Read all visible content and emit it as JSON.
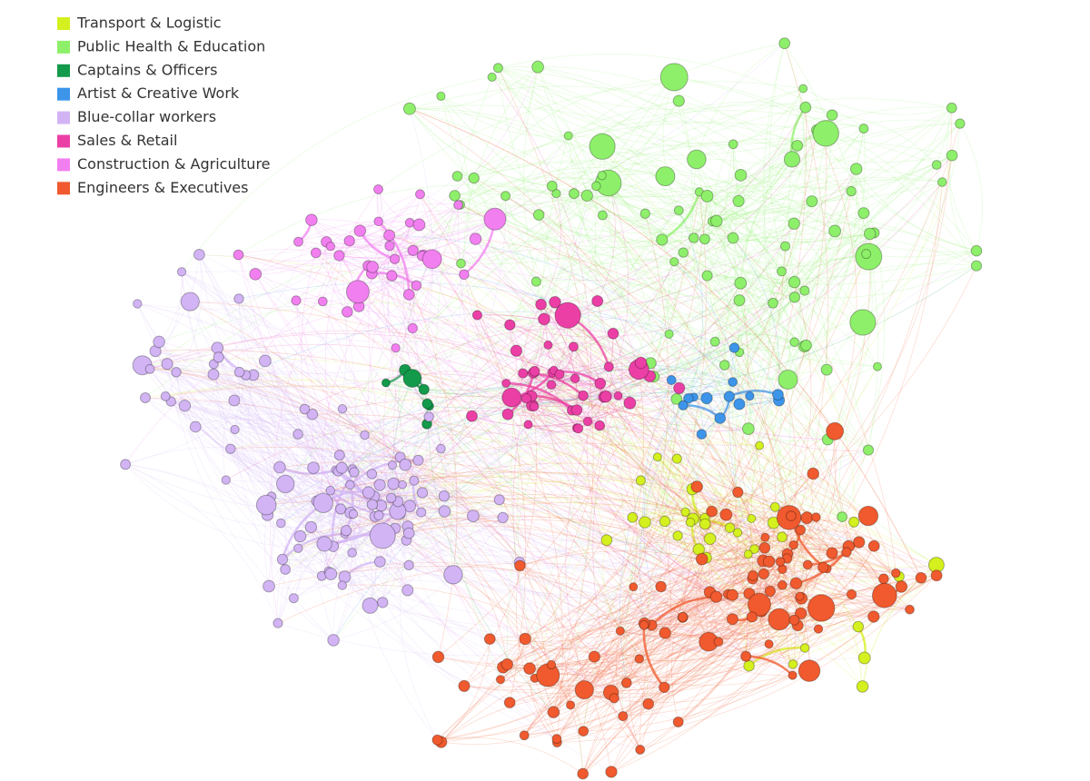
{
  "legend": {
    "items": [
      {
        "label": "Transport & Logistic",
        "color": "#d4f01e"
      },
      {
        "label": "Public Health & Education",
        "color": "#8ef06a"
      },
      {
        "label": "Captains & Officers",
        "color": "#139a4a"
      },
      {
        "label": "Artist & Creative Work",
        "color": "#3d95ea"
      },
      {
        "label": "Blue-collar workers",
        "color": "#d2b4f5"
      },
      {
        "label": "Sales & Retail",
        "color": "#ec3fa6"
      },
      {
        "label": "Construction & Agriculture",
        "color": "#f27ff0"
      },
      {
        "label": "Engineers & Executives",
        "color": "#f05a2e"
      }
    ]
  }
}
